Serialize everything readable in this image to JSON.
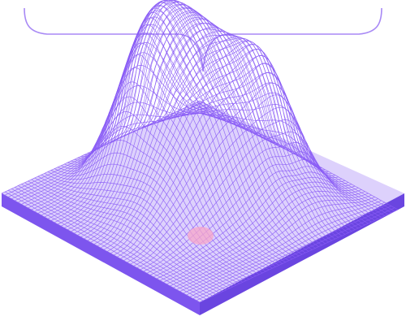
{
  "illustration": {
    "subject": "wireframe-terrain",
    "colors": {
      "wire": "#8a5cf6",
      "wire_light": "#b79cfa",
      "base_top": "#9d7bf7",
      "base_side_left": "#7d55ee",
      "base_side_right": "#6a45e0",
      "bracket": "#a889f5",
      "highlight": "#f7a6c9",
      "background": "#ffffff"
    }
  }
}
